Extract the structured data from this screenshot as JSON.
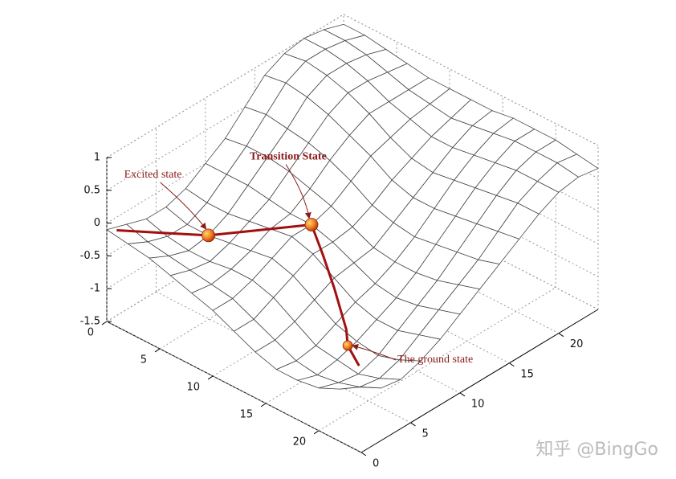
{
  "chart_data": {
    "type": "surface3d",
    "x": [
      0,
      2,
      4,
      6,
      8,
      10,
      12,
      14,
      16,
      18,
      20,
      22,
      24
    ],
    "y": [
      0,
      2,
      4,
      6,
      8,
      10,
      12,
      14,
      16,
      18,
      20,
      22,
      24
    ],
    "z": [
      [
        -0.1,
        -0.2,
        -0.3,
        -0.3,
        -0.2,
        0.0,
        0.2,
        0.5,
        0.8,
        0.95,
        1.0,
        0.95,
        0.85
      ],
      [
        -0.15,
        -0.3,
        -0.4,
        -0.4,
        -0.25,
        0.0,
        0.25,
        0.55,
        0.85,
        1.0,
        1.0,
        0.95,
        0.85
      ],
      [
        -0.2,
        -0.35,
        -0.45,
        -0.4,
        -0.25,
        0.0,
        0.25,
        0.5,
        0.8,
        0.95,
        0.95,
        0.9,
        0.8
      ],
      [
        -0.3,
        -0.4,
        -0.45,
        -0.35,
        -0.2,
        -0.05,
        0.2,
        0.45,
        0.7,
        0.85,
        0.85,
        0.8,
        0.75
      ],
      [
        -0.4,
        -0.45,
        -0.4,
        -0.3,
        -0.15,
        -0.1,
        0.1,
        0.35,
        0.55,
        0.7,
        0.7,
        0.7,
        0.7
      ],
      [
        -0.5,
        -0.5,
        -0.4,
        -0.25,
        -0.1,
        -0.1,
        0.0,
        0.2,
        0.4,
        0.5,
        0.6,
        0.65,
        0.7
      ],
      [
        -0.65,
        -0.65,
        -0.5,
        -0.35,
        -0.2,
        -0.2,
        -0.15,
        0.0,
        0.2,
        0.35,
        0.5,
        0.6,
        0.7
      ],
      [
        -0.8,
        -0.8,
        -0.7,
        -0.55,
        -0.4,
        -0.35,
        -0.3,
        -0.1,
        0.1,
        0.3,
        0.5,
        0.65,
        0.7
      ],
      [
        -0.9,
        -0.95,
        -0.9,
        -0.75,
        -0.6,
        -0.5,
        -0.35,
        -0.15,
        0.1,
        0.35,
        0.55,
        0.7,
        0.75
      ],
      [
        -0.9,
        -1.0,
        -0.95,
        -0.85,
        -0.7,
        -0.55,
        -0.35,
        -0.1,
        0.15,
        0.4,
        0.6,
        0.75,
        0.75
      ],
      [
        -0.85,
        -0.95,
        -1.0,
        -0.9,
        -0.7,
        -0.5,
        -0.3,
        -0.05,
        0.2,
        0.45,
        0.65,
        0.75,
        0.75
      ],
      [
        -0.7,
        -0.85,
        -0.9,
        -0.8,
        -0.6,
        -0.4,
        -0.2,
        0.0,
        0.25,
        0.5,
        0.65,
        0.75,
        0.7
      ],
      [
        -0.5,
        -0.7,
        -0.75,
        -0.65,
        -0.5,
        -0.3,
        -0.1,
        0.1,
        0.3,
        0.5,
        0.65,
        0.7,
        0.65
      ]
    ],
    "xlim": [
      0,
      24
    ],
    "ylim": [
      0,
      24
    ],
    "zlim": [
      -1.5,
      1
    ],
    "xticks": [
      0,
      5,
      10,
      15,
      20
    ],
    "yticks": [
      0,
      5,
      10,
      15,
      20
    ],
    "zticks": [
      -1.5,
      -1,
      -0.5,
      0,
      0.5,
      1
    ],
    "grid": true,
    "mesh_color": "#444444",
    "path_color": "#a01010",
    "path": {
      "x": [
        0,
        2,
        4,
        7,
        10,
        12,
        14,
        17,
        19,
        21
      ],
      "y": [
        1,
        4,
        6,
        8,
        10,
        9,
        8,
        6,
        4,
        3
      ],
      "z": [
        -0.2,
        -0.35,
        -0.4,
        -0.25,
        -0.1,
        -0.3,
        -0.55,
        -0.75,
        -0.65,
        -0.7
      ]
    },
    "points": [
      {
        "label": "Excited state",
        "x": 4,
        "y": 6,
        "z": -0.4
      },
      {
        "label": "Transition State",
        "x": 10,
        "y": 10,
        "z": -0.1
      },
      {
        "label": "The ground state",
        "x": 19,
        "y": 4,
        "z": -0.65
      }
    ],
    "watermark": "知乎 @BingGo"
  }
}
